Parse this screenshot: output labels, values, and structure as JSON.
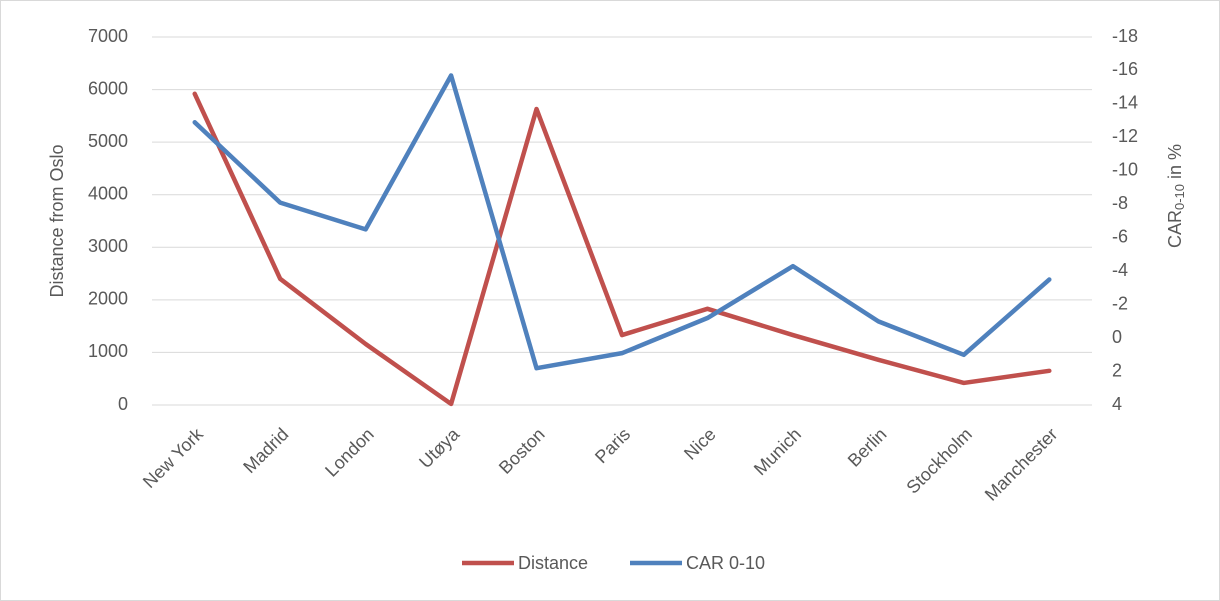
{
  "chart_data": {
    "type": "line",
    "categories": [
      "New York",
      "Madrid",
      "London",
      "Utøya",
      "Boston",
      "Paris",
      "Nice",
      "Munich",
      "Berlin",
      "Stockholm",
      "Manchester"
    ],
    "series": [
      {
        "name": "Distance",
        "color": "#c0504d",
        "values": [
          5920,
          2400,
          1160,
          20,
          5630,
          1330,
          1830,
          1330,
          860,
          420,
          650
        ]
      },
      {
        "name": "CAR 0-10",
        "color": "#4f81bd",
        "axis": "y2",
        "values": [
          -12.9,
          -8.1,
          -6.5,
          -15.7,
          1.8,
          0.9,
          -1.2,
          -4.3,
          -1.0,
          1.0,
          -3.5
        ]
      }
    ],
    "ylabel": "Distance from Oslo",
    "y2label": [
      "CAR",
      "0-10",
      " in %"
    ],
    "ylim": [
      0,
      7000
    ],
    "yticks": [
      0,
      1000,
      2000,
      3000,
      4000,
      5000,
      6000,
      7000
    ],
    "y2lim": [
      4,
      -18
    ],
    "y2ticks": [
      4,
      2,
      0,
      -2,
      -4,
      -6,
      -8,
      -10,
      -12,
      -14,
      -16,
      -18
    ],
    "grid": true,
    "legend": "bottom"
  }
}
